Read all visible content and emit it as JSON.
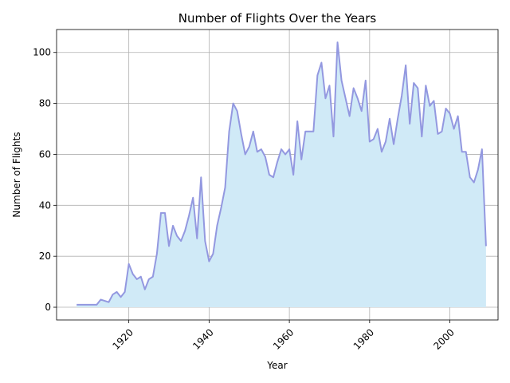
{
  "chart_data": {
    "type": "area",
    "title": "Number of Flights Over the Years",
    "xlabel": "Year",
    "ylabel": "Number of Flights",
    "xlim": [
      1902,
      2012
    ],
    "ylim": [
      -5,
      109
    ],
    "xticks": [
      1920,
      1940,
      1960,
      1980,
      2000
    ],
    "yticks": [
      0,
      20,
      40,
      60,
      80,
      100
    ],
    "grid": true,
    "line_color": "#9398e0",
    "fill_color": "#d0eaf7",
    "x": [
      1907,
      1908,
      1909,
      1910,
      1911,
      1912,
      1913,
      1914,
      1915,
      1916,
      1917,
      1918,
      1919,
      1920,
      1921,
      1922,
      1923,
      1924,
      1925,
      1926,
      1927,
      1928,
      1929,
      1930,
      1931,
      1932,
      1933,
      1934,
      1935,
      1936,
      1937,
      1938,
      1939,
      1940,
      1941,
      1942,
      1943,
      1944,
      1945,
      1946,
      1947,
      1948,
      1949,
      1950,
      1951,
      1952,
      1953,
      1954,
      1955,
      1956,
      1957,
      1958,
      1959,
      1960,
      1961,
      1962,
      1963,
      1964,
      1965,
      1966,
      1967,
      1968,
      1969,
      1970,
      1971,
      1972,
      1973,
      1974,
      1975,
      1976,
      1977,
      1978,
      1979,
      1980,
      1981,
      1982,
      1983,
      1984,
      1985,
      1986,
      1987,
      1988,
      1989,
      1990,
      1991,
      1992,
      1993,
      1994,
      1995,
      1996,
      1997,
      1998,
      1999,
      2000,
      2001,
      2002,
      2003,
      2004,
      2005,
      2006,
      2007,
      2008,
      2009
    ],
    "y": [
      1,
      1,
      1,
      1,
      1,
      1,
      3,
      2.5,
      2,
      5,
      6,
      4,
      6,
      17,
      13,
      11,
      12,
      7,
      11,
      12,
      21,
      37,
      37,
      24,
      32,
      28,
      26,
      30,
      36,
      43,
      27,
      51,
      26,
      18,
      21,
      32,
      39,
      47,
      69,
      80,
      77,
      68,
      60,
      63,
      69,
      61,
      62,
      59,
      52,
      51,
      57,
      62,
      60,
      62,
      52,
      73,
      58,
      69,
      69,
      69,
      91,
      96,
      82,
      87,
      67,
      104,
      89,
      82,
      75,
      86,
      82,
      77,
      89,
      65,
      66,
      70,
      61,
      65,
      74,
      64,
      74,
      83,
      95,
      72,
      88,
      86,
      67,
      87,
      79,
      81,
      68,
      69,
      78,
      76,
      70,
      75,
      61,
      61,
      51,
      49,
      54,
      62,
      24
    ]
  }
}
